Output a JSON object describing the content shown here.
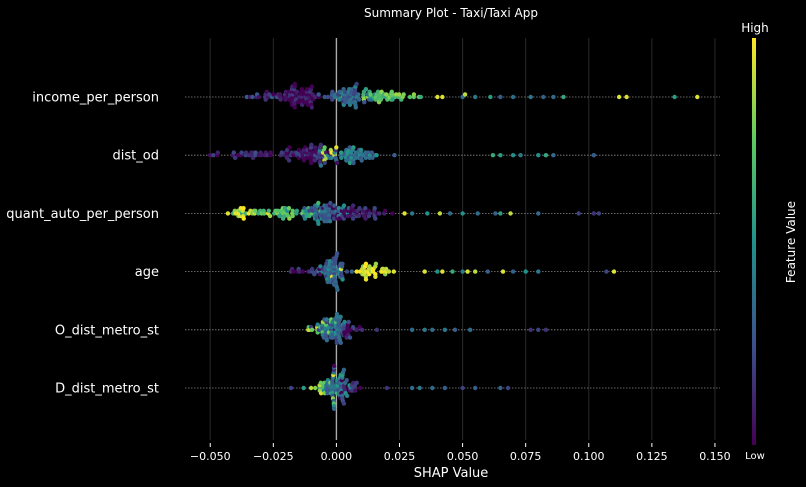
{
  "chart_data": {
    "type": "scatter",
    "subtype": "beeswarm",
    "title": "Summary Plot - Taxi/Taxi App",
    "xlabel": "SHAP Value",
    "xlim": [
      -0.06,
      0.152
    ],
    "xticks": [
      -0.05,
      -0.025,
      0.0,
      0.025,
      0.05,
      0.075,
      0.1,
      0.125,
      0.15
    ],
    "xtick_labels": [
      "−0.050",
      "−0.025",
      "0.000",
      "0.025",
      "0.050",
      "0.075",
      "0.100",
      "0.125",
      "0.150"
    ],
    "grid": true,
    "colorbar": {
      "label": "Feature Value",
      "high_label": "High",
      "low_label": "Low",
      "colors": [
        "#440154",
        "#3b528b",
        "#21918c",
        "#5ec962",
        "#fde725"
      ]
    },
    "features": [
      {
        "name": "income_per_person",
        "groups": [
          {
            "c": -0.015,
            "n": 70,
            "w": 0.006,
            "f": 0.05
          },
          {
            "c": 0.003,
            "n": 55,
            "w": 0.007,
            "f": 0.32
          },
          {
            "c": 0.02,
            "n": 45,
            "w": 0.01,
            "f": 0.7
          },
          {
            "c": -0.028,
            "n": 15,
            "w": 0.007,
            "f": 0.15
          }
        ],
        "points": [
          [
            0.04,
            0.95
          ],
          [
            0.042,
            0.95
          ],
          [
            0.05,
            0.35
          ],
          [
            0.051,
            0.9
          ],
          [
            0.055,
            0.4
          ],
          [
            0.061,
            0.55
          ],
          [
            0.065,
            0.3
          ],
          [
            0.07,
            0.35
          ],
          [
            0.077,
            0.4
          ],
          [
            0.082,
            0.3
          ],
          [
            0.086,
            0.35
          ],
          [
            0.09,
            0.6
          ],
          [
            0.112,
            0.95
          ],
          [
            0.115,
            0.95
          ],
          [
            0.134,
            0.55
          ],
          [
            0.143,
            0.95
          ]
        ]
      },
      {
        "name": "dist_od",
        "groups": [
          {
            "c": -0.012,
            "n": 60,
            "w": 0.009,
            "f": 0.1
          },
          {
            "c": 0.006,
            "n": 55,
            "w": 0.008,
            "f": 0.4
          },
          {
            "c": -0.035,
            "n": 25,
            "w": 0.008,
            "f": 0.1
          },
          {
            "c": -0.004,
            "n": 10,
            "w": 0.003,
            "f": 0.85
          }
        ],
        "points": [
          [
            -0.05,
            0.05
          ],
          [
            -0.047,
            0.1
          ],
          [
            0.023,
            0.3
          ],
          [
            0.062,
            0.6
          ],
          [
            0.065,
            0.55
          ],
          [
            0.07,
            0.5
          ],
          [
            0.073,
            0.4
          ],
          [
            0.08,
            0.5
          ],
          [
            0.083,
            0.6
          ],
          [
            0.086,
            0.35
          ],
          [
            0.102,
            0.3
          ]
        ]
      },
      {
        "name": "quant_auto_per_person",
        "groups": [
          {
            "c": -0.005,
            "n": 60,
            "w": 0.007,
            "f": 0.35
          },
          {
            "c": -0.02,
            "n": 45,
            "w": 0.01,
            "f": 0.7
          },
          {
            "c": 0.01,
            "n": 50,
            "w": 0.009,
            "f": 0.08
          },
          {
            "c": -0.035,
            "n": 15,
            "w": 0.006,
            "f": 0.9
          }
        ],
        "points": [
          [
            -0.043,
            0.95
          ],
          [
            -0.04,
            0.95
          ],
          [
            -0.038,
            0.95
          ],
          [
            0.027,
            0.95
          ],
          [
            0.03,
            0.4
          ],
          [
            0.036,
            0.5
          ],
          [
            0.041,
            0.9
          ],
          [
            0.045,
            0.35
          ],
          [
            0.05,
            0.5
          ],
          [
            0.056,
            0.35
          ],
          [
            0.063,
            0.3
          ],
          [
            0.065,
            0.55
          ],
          [
            0.069,
            0.9
          ],
          [
            0.08,
            0.35
          ],
          [
            0.096,
            0.2
          ],
          [
            0.102,
            0.15
          ],
          [
            0.104,
            0.2
          ]
        ]
      },
      {
        "name": "age",
        "groups": [
          {
            "c": -0.002,
            "n": 60,
            "w": 0.004,
            "f": 0.35
          },
          {
            "c": 0.012,
            "n": 35,
            "w": 0.008,
            "f": 0.95
          },
          {
            "c": -0.01,
            "n": 15,
            "w": 0.005,
            "f": 0.1
          }
        ],
        "points": [
          [
            -0.018,
            0.15
          ],
          [
            -0.015,
            0.2
          ],
          [
            0.035,
            0.95
          ],
          [
            0.04,
            0.5
          ],
          [
            0.042,
            0.95
          ],
          [
            0.046,
            0.6
          ],
          [
            0.05,
            0.4
          ],
          [
            0.052,
            0.95
          ],
          [
            0.055,
            0.9
          ],
          [
            0.06,
            0.3
          ],
          [
            0.066,
            0.95
          ],
          [
            0.07,
            0.3
          ],
          [
            0.075,
            0.5
          ],
          [
            0.08,
            0.4
          ],
          [
            0.11,
            0.95
          ],
          [
            0.107,
            0.2
          ]
        ]
      },
      {
        "name": "O_dist_metro_st",
        "groups": [
          {
            "c": -0.001,
            "n": 55,
            "w": 0.004,
            "f": 0.35
          },
          {
            "c": 0.004,
            "n": 20,
            "w": 0.005,
            "f": 0.1
          },
          {
            "c": -0.006,
            "n": 15,
            "w": 0.004,
            "f": 0.8
          }
        ],
        "points": [
          [
            -0.01,
            0.15
          ],
          [
            -0.007,
            0.2
          ],
          [
            0.016,
            0.15
          ],
          [
            0.03,
            0.35
          ],
          [
            0.035,
            0.4
          ],
          [
            0.038,
            0.35
          ],
          [
            0.043,
            0.4
          ],
          [
            0.047,
            0.3
          ],
          [
            0.053,
            0.35
          ],
          [
            0.077,
            0.15
          ],
          [
            0.08,
            0.2
          ],
          [
            0.083,
            0.15
          ]
        ]
      },
      {
        "name": "D_dist_metro_st",
        "groups": [
          {
            "c": 0.0,
            "n": 55,
            "w": 0.004,
            "f": 0.4
          },
          {
            "c": 0.004,
            "n": 20,
            "w": 0.005,
            "f": 0.1
          },
          {
            "c": -0.005,
            "n": 15,
            "w": 0.004,
            "f": 0.8
          }
        ],
        "points": [
          [
            -0.018,
            0.2
          ],
          [
            -0.013,
            0.55
          ],
          [
            0.02,
            0.15
          ],
          [
            0.03,
            0.35
          ],
          [
            0.033,
            0.4
          ],
          [
            0.038,
            0.35
          ],
          [
            0.043,
            0.3
          ],
          [
            0.05,
            0.2
          ],
          [
            0.055,
            0.3
          ],
          [
            0.065,
            0.3
          ],
          [
            0.068,
            0.2
          ]
        ]
      }
    ]
  }
}
